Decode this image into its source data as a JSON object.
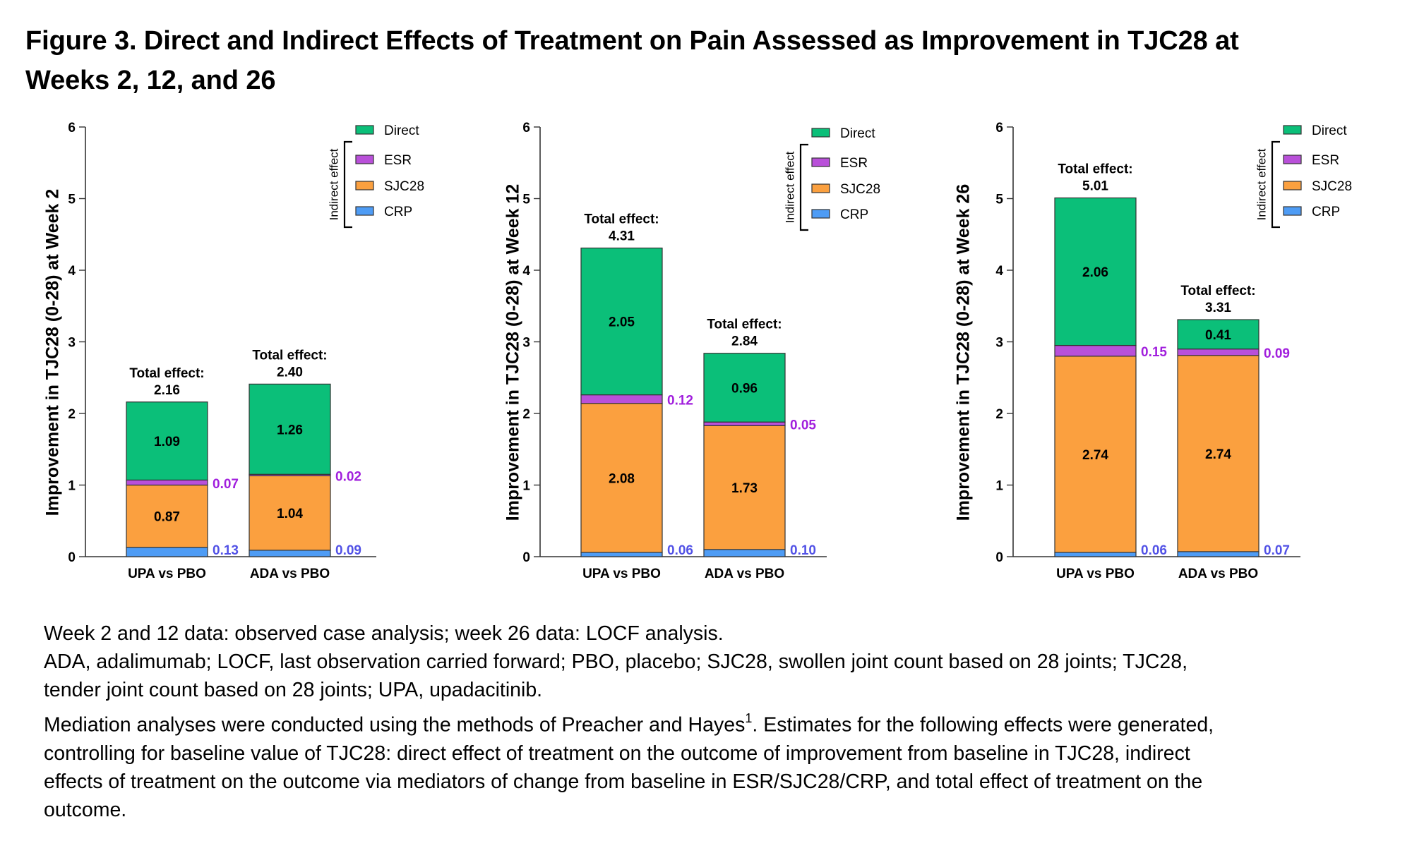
{
  "title": {
    "line1": "Figure 3. Direct and Indirect Effects of Treatment on Pain Assessed as Improvement in TJC28 at",
    "line2": "Weeks 2, 12, and 26"
  },
  "colors": {
    "direct": "#0BBF79",
    "esr": "#B950D9",
    "sjc28": "#FBA03F",
    "crp": "#4E9CF5",
    "esr_label": "#A11FDD",
    "crp_label": "#5252E6",
    "bar_outline": "#333333"
  },
  "legend": {
    "group_label": "Indirect effect",
    "items": [
      {
        "key": "direct",
        "label": "Direct"
      },
      {
        "key": "esr",
        "label": "ESR"
      },
      {
        "key": "sjc28",
        "label": "SJC28"
      },
      {
        "key": "crp",
        "label": "CRP"
      }
    ]
  },
  "total_effect_label": "Total effect:",
  "chart_data": [
    {
      "type": "bar",
      "stacked": true,
      "title": "",
      "xlabel": "",
      "ylabel": "Improvement in TJC28 (0-28) at Week 2",
      "ylim": [
        0,
        6
      ],
      "yticks": [
        0,
        1,
        2,
        3,
        4,
        5,
        6
      ],
      "legend_position": "top-right",
      "categories": [
        "UPA vs PBO",
        "ADA vs PBO"
      ],
      "series": [
        {
          "name": "CRP",
          "key": "crp",
          "values": [
            0.13,
            0.09
          ]
        },
        {
          "name": "SJC28",
          "key": "sjc28",
          "values": [
            0.87,
            1.04
          ]
        },
        {
          "name": "ESR",
          "key": "esr",
          "values": [
            0.07,
            0.02
          ]
        },
        {
          "name": "Direct",
          "key": "direct",
          "values": [
            1.09,
            1.26
          ]
        }
      ],
      "totals": [
        "2.16",
        "2.40"
      ],
      "value_labels": {
        "crp": [
          "0.13",
          "0.09"
        ],
        "sjc28": [
          "0.87",
          "1.04"
        ],
        "esr": [
          "0.07",
          "0.02"
        ],
        "direct": [
          "1.09",
          "1.26"
        ]
      }
    },
    {
      "type": "bar",
      "stacked": true,
      "title": "",
      "xlabel": "",
      "ylabel": "Improvement in TJC28 (0-28) at Week 12",
      "ylim": [
        0,
        6
      ],
      "yticks": [
        0,
        1,
        2,
        3,
        4,
        5,
        6
      ],
      "legend_position": "top-right",
      "categories": [
        "UPA vs PBO",
        "ADA vs PBO"
      ],
      "series": [
        {
          "name": "CRP",
          "key": "crp",
          "values": [
            0.06,
            0.1
          ]
        },
        {
          "name": "SJC28",
          "key": "sjc28",
          "values": [
            2.08,
            1.73
          ]
        },
        {
          "name": "ESR",
          "key": "esr",
          "values": [
            0.12,
            0.05
          ]
        },
        {
          "name": "Direct",
          "key": "direct",
          "values": [
            2.05,
            0.96
          ]
        }
      ],
      "totals": [
        "4.31",
        "2.84"
      ],
      "value_labels": {
        "crp": [
          "0.06",
          "0.10"
        ],
        "sjc28": [
          "2.08",
          "1.73"
        ],
        "esr": [
          "0.12",
          "0.05"
        ],
        "direct": [
          "2.05",
          "0.96"
        ]
      }
    },
    {
      "type": "bar",
      "stacked": true,
      "title": "",
      "xlabel": "",
      "ylabel": "Improvement in TJC28 (0-28) at Week 26",
      "ylim": [
        0,
        6
      ],
      "yticks": [
        0,
        1,
        2,
        3,
        4,
        5,
        6
      ],
      "legend_position": "top-right",
      "categories": [
        "UPA vs PBO",
        "ADA vs PBO"
      ],
      "series": [
        {
          "name": "CRP",
          "key": "crp",
          "values": [
            0.06,
            0.07
          ]
        },
        {
          "name": "SJC28",
          "key": "sjc28",
          "values": [
            2.74,
            2.74
          ]
        },
        {
          "name": "ESR",
          "key": "esr",
          "values": [
            0.15,
            0.09
          ]
        },
        {
          "name": "Direct",
          "key": "direct",
          "values": [
            2.06,
            0.41
          ]
        }
      ],
      "totals": [
        "5.01",
        "3.31"
      ],
      "value_labels": {
        "crp": [
          "0.06",
          "0.07"
        ],
        "sjc28": [
          "2.74",
          "2.74"
        ],
        "esr": [
          "0.15",
          "0.09"
        ],
        "direct": [
          "2.06",
          "0.41"
        ]
      }
    }
  ],
  "notes": {
    "line1": "Week 2 and 12 data: observed case analysis; week 26 data: LOCF analysis.",
    "line2": "ADA, adalimumab; LOCF, last observation carried forward; PBO, placebo; SJC28, swollen joint count based on 28 joints; TJC28,",
    "line3": "tender joint count based on 28 joints; UPA, upadacitinib.",
    "line4_pre": "Mediation analyses were conducted using the methods of Preacher and Hayes",
    "line4_sup": "1",
    "line4_post": ". Estimates for the following effects were generated,",
    "line5": "controlling for baseline value of TJC28: direct effect of treatment on the outcome of improvement from baseline in TJC28, indirect",
    "line6": "effects of treatment on the outcome via mediators of change from baseline in ESR/SJC28/CRP, and total effect of treatment on the",
    "line7": "outcome."
  }
}
